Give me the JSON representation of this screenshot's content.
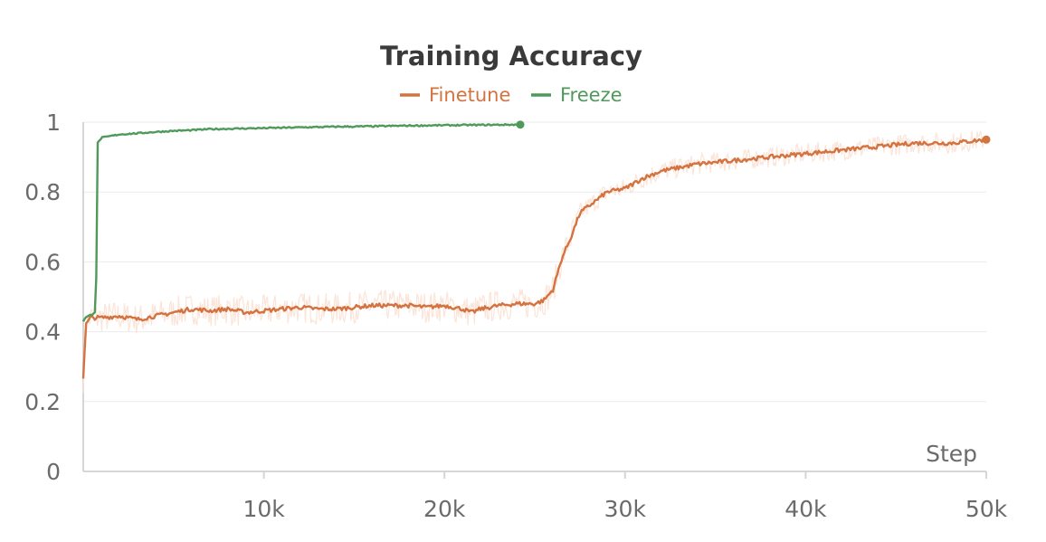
{
  "chart_data": {
    "type": "line",
    "title": "Training Accuracy",
    "xlabel": "Step",
    "ylabel": "",
    "xlim": [
      0,
      50000
    ],
    "ylim": [
      0,
      1
    ],
    "x_ticks": [
      10000,
      20000,
      30000,
      40000,
      50000
    ],
    "x_tick_labels": [
      "10k",
      "20k",
      "30k",
      "40k",
      "50k"
    ],
    "y_ticks": [
      0,
      0.2,
      0.4,
      0.6,
      0.8,
      1
    ],
    "y_tick_labels": [
      "0",
      "0.2",
      "0.4",
      "0.6",
      "0.8",
      "1"
    ],
    "grid": true,
    "legend_position": "top-center",
    "series": [
      {
        "name": "Finetune",
        "color": "#d4733f",
        "raw_color": "#fbe4d8",
        "x": [
          0,
          150,
          400,
          1000,
          2000,
          3000,
          4000,
          5000,
          6000,
          7000,
          8000,
          9000,
          10000,
          11000,
          12000,
          13000,
          14000,
          15000,
          16000,
          17000,
          18000,
          19000,
          20000,
          21000,
          21500,
          22000,
          23000,
          24000,
          25000,
          25500,
          26000,
          26500,
          27000,
          27500,
          28000,
          29000,
          30000,
          31000,
          32000,
          33000,
          34000,
          35000,
          36000,
          37000,
          38000,
          39000,
          40000,
          41000,
          42000,
          43000,
          44000,
          45000,
          46000,
          47000,
          48000,
          49000,
          50000
        ],
        "values": [
          0.27,
          0.42,
          0.44,
          0.44,
          0.445,
          0.435,
          0.445,
          0.455,
          0.465,
          0.46,
          0.465,
          0.455,
          0.46,
          0.465,
          0.47,
          0.465,
          0.465,
          0.47,
          0.475,
          0.475,
          0.475,
          0.47,
          0.475,
          0.465,
          0.455,
          0.465,
          0.475,
          0.48,
          0.48,
          0.49,
          0.52,
          0.61,
          0.67,
          0.74,
          0.76,
          0.8,
          0.81,
          0.84,
          0.86,
          0.87,
          0.88,
          0.885,
          0.89,
          0.895,
          0.9,
          0.905,
          0.91,
          0.915,
          0.92,
          0.925,
          0.93,
          0.935,
          0.94,
          0.94,
          0.94,
          0.945,
          0.95
        ]
      },
      {
        "name": "Freeze",
        "color": "#4f9a5b",
        "x": [
          0,
          100,
          300,
          500,
          700,
          800,
          1000,
          1500,
          2000,
          3000,
          4000,
          5000,
          6000,
          7000,
          8000,
          10000,
          12000,
          14000,
          16000,
          18000,
          20000,
          22000,
          24200
        ],
        "values": [
          0.43,
          0.44,
          0.445,
          0.45,
          0.46,
          0.94,
          0.955,
          0.96,
          0.965,
          0.968,
          0.972,
          0.975,
          0.977,
          0.98,
          0.981,
          0.983,
          0.985,
          0.987,
          0.988,
          0.99,
          0.991,
          0.992,
          0.993
        ]
      }
    ]
  }
}
